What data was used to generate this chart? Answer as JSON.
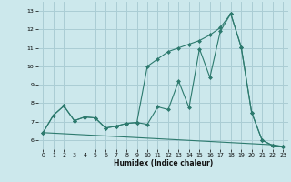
{
  "xlabel": "Humidex (Indice chaleur)",
  "background_color": "#cce8ec",
  "grid_color": "#aacdd4",
  "line_color": "#2d7a6e",
  "xlim": [
    -0.5,
    23.5
  ],
  "ylim": [
    5.5,
    13.5
  ],
  "xticks": [
    0,
    1,
    2,
    3,
    4,
    5,
    6,
    7,
    8,
    9,
    10,
    11,
    12,
    13,
    14,
    15,
    16,
    17,
    18,
    19,
    20,
    21,
    22,
    23
  ],
  "yticks": [
    6,
    7,
    8,
    9,
    10,
    11,
    12,
    13
  ],
  "line1_x": [
    0,
    1,
    2,
    3,
    4,
    5,
    6,
    7,
    8,
    9,
    10,
    11,
    12,
    13,
    14,
    15,
    16,
    17,
    18,
    19,
    20,
    21,
    22,
    23
  ],
  "line1_y": [
    6.4,
    7.35,
    7.85,
    7.05,
    7.25,
    7.2,
    6.65,
    6.75,
    6.9,
    6.95,
    6.85,
    7.8,
    7.65,
    9.2,
    7.75,
    10.95,
    9.4,
    11.9,
    12.85,
    11.05,
    7.5,
    6.0,
    5.7,
    5.65
  ],
  "line2_x": [
    0,
    1,
    2,
    3,
    4,
    5,
    6,
    7,
    8,
    9,
    10,
    11,
    12,
    13,
    14,
    15,
    16,
    17,
    18,
    19,
    20,
    21,
    22,
    23
  ],
  "line2_y": [
    6.4,
    7.35,
    7.85,
    7.05,
    7.25,
    7.2,
    6.65,
    6.75,
    6.9,
    6.95,
    10.0,
    10.4,
    10.8,
    11.0,
    11.2,
    11.4,
    11.7,
    12.1,
    12.85,
    11.05,
    7.5,
    6.0,
    5.7,
    5.65
  ],
  "line3_x": [
    0,
    1,
    2,
    3,
    4,
    5,
    6,
    7,
    8,
    9,
    10,
    11,
    12,
    13,
    14,
    15,
    16,
    17,
    18,
    19,
    20,
    21,
    22,
    23
  ],
  "line3_y": [
    6.4,
    6.37,
    6.34,
    6.31,
    6.28,
    6.25,
    6.22,
    6.19,
    6.16,
    6.13,
    6.1,
    6.07,
    6.04,
    6.01,
    5.98,
    5.95,
    5.92,
    5.89,
    5.86,
    5.83,
    5.8,
    5.77,
    5.74,
    5.65
  ]
}
